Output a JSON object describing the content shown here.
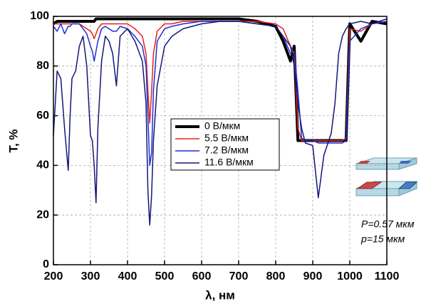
{
  "chart_data": {
    "type": "line",
    "xlabel": "λ, нм",
    "ylabel": "T, %",
    "x": [
      200,
      210,
      220,
      230,
      240,
      245,
      250,
      260,
      270,
      280,
      290,
      300,
      305,
      310,
      315,
      320,
      330,
      340,
      350,
      360,
      370,
      380,
      400,
      420,
      440,
      450,
      455,
      460,
      465,
      470,
      480,
      500,
      520,
      550,
      600,
      650,
      700,
      750,
      800,
      820,
      840,
      850,
      860,
      870,
      880,
      900,
      915,
      930,
      950,
      960,
      970,
      980,
      990,
      1000,
      1030,
      1060,
      1100
    ],
    "series": [
      {
        "name": "0 В/мкм",
        "color": "#000000",
        "width": 4,
        "values": [
          97,
          98,
          98,
          98,
          98,
          98,
          98,
          98,
          98,
          98,
          98,
          98,
          98,
          98,
          99,
          99,
          99,
          99,
          99,
          99,
          99,
          99,
          99,
          99,
          99,
          99,
          99,
          99,
          99,
          99,
          99,
          99,
          99,
          99,
          99,
          99,
          99,
          98,
          96,
          90,
          82,
          88,
          50,
          50,
          50,
          50,
          50,
          50,
          50,
          50,
          50,
          50,
          50,
          97,
          90,
          98,
          97
        ]
      },
      {
        "name": "5.5 В/мкм",
        "color": "#e8201c",
        "width": 1.5,
        "values": [
          97,
          97,
          97,
          97,
          97,
          97,
          97,
          97,
          97,
          96,
          95,
          94,
          93,
          91,
          93,
          95,
          97,
          97,
          97,
          97,
          97,
          97,
          97,
          95,
          92,
          85,
          70,
          57,
          70,
          85,
          94,
          97,
          97,
          98,
          98,
          98,
          98,
          98,
          97,
          95,
          88,
          85,
          55,
          50,
          50,
          50,
          50,
          50,
          50,
          50,
          50,
          50,
          51,
          95,
          94,
          97,
          98
        ]
      },
      {
        "name": "7.2 В/мкм",
        "color": "#1f2fd6",
        "width": 1.5,
        "values": [
          96,
          94,
          97,
          93,
          96,
          96,
          97,
          97,
          97,
          95,
          93,
          88,
          86,
          82,
          86,
          90,
          95,
          96,
          95,
          94,
          94,
          96,
          95,
          92,
          88,
          80,
          60,
          40,
          45,
          70,
          90,
          95,
          96,
          97,
          98,
          98,
          98,
          97,
          96,
          92,
          85,
          86,
          70,
          51,
          50,
          50,
          49,
          49,
          49,
          49,
          49,
          49,
          50,
          90,
          95,
          97,
          98
        ]
      },
      {
        "name": "11.6 В/мкм",
        "color": "#14167a",
        "width": 1.5,
        "values": [
          52,
          78,
          75,
          55,
          38,
          60,
          75,
          78,
          88,
          92,
          80,
          52,
          50,
          40,
          25,
          55,
          82,
          92,
          90,
          85,
          72,
          92,
          95,
          90,
          82,
          65,
          30,
          16,
          28,
          50,
          72,
          88,
          92,
          95,
          97,
          98,
          98,
          97,
          96,
          92,
          88,
          80,
          65,
          55,
          49,
          48,
          27,
          44,
          53,
          65,
          85,
          92,
          95,
          97,
          98,
          97,
          99
        ]
      }
    ],
    "xlim": [
      200,
      1100
    ],
    "xticks": [
      200,
      300,
      400,
      500,
      600,
      700,
      800,
      900,
      1000,
      1100
    ],
    "ylim": [
      0,
      100
    ],
    "yticks": [
      0,
      20,
      40,
      60,
      80,
      100
    ],
    "grid": true,
    "annotations": [
      "P=0.57 мкм",
      "p=15 мкм"
    ]
  }
}
